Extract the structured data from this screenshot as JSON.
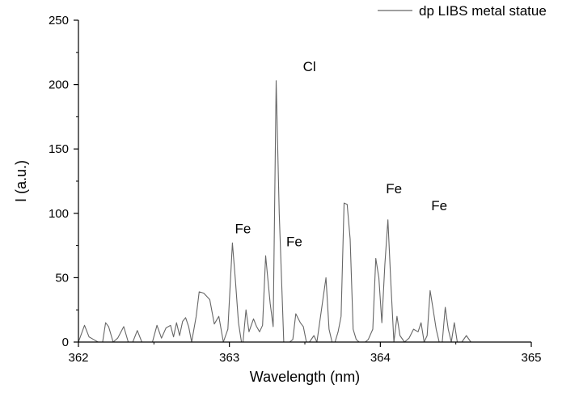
{
  "chart_data": {
    "type": "line",
    "xlabel": "Wavelength (nm)",
    "ylabel": "I (a.u.)",
    "xlim": [
      362,
      365
    ],
    "ylim": [
      0,
      250
    ],
    "xticks": [
      362,
      363,
      364,
      365
    ],
    "yticks": [
      0,
      50,
      100,
      150,
      200,
      250
    ],
    "legend_position": "top-right",
    "grid": false,
    "line_color": "#666666",
    "series": [
      {
        "name": "dp LIBS metal statue",
        "x": [
          362.0,
          362.04,
          362.07,
          362.1,
          362.13,
          362.16,
          362.18,
          362.2,
          362.23,
          362.26,
          362.3,
          362.33,
          362.36,
          362.39,
          362.42,
          362.45,
          362.49,
          362.52,
          362.55,
          362.58,
          362.61,
          362.63,
          362.65,
          362.67,
          362.69,
          362.71,
          362.73,
          362.75,
          362.78,
          362.8,
          362.83,
          362.87,
          362.9,
          362.93,
          362.96,
          362.99,
          363.02,
          363.04,
          363.06,
          363.08,
          363.09,
          363.11,
          363.13,
          363.16,
          363.18,
          363.2,
          363.22,
          363.24,
          363.27,
          363.29,
          363.31,
          363.33,
          363.36,
          363.38,
          363.4,
          363.42,
          363.44,
          363.47,
          363.49,
          363.51,
          363.53,
          363.56,
          363.58,
          363.61,
          363.64,
          363.66,
          363.68,
          363.7,
          363.72,
          363.74,
          363.76,
          363.78,
          363.8,
          363.82,
          363.84,
          363.86,
          363.88,
          363.9,
          363.92,
          363.95,
          363.97,
          363.99,
          364.01,
          364.03,
          364.05,
          364.07,
          364.09,
          364.11,
          364.13,
          364.16,
          364.19,
          364.22,
          364.25,
          364.27,
          364.29,
          364.31,
          364.33,
          364.35,
          364.37,
          364.39,
          364.41,
          364.43,
          364.45,
          364.47,
          364.49,
          364.51,
          364.54,
          364.57,
          364.6,
          364.63,
          364.66,
          364.69,
          364.72,
          364.74,
          364.76,
          364.78,
          364.8,
          364.82,
          364.84,
          364.86,
          364.88,
          364.9,
          364.92,
          364.94,
          364.96,
          364.98,
          365.0
        ],
        "y": [
          0,
          13,
          4,
          2,
          0,
          0,
          15,
          12,
          0,
          3,
          12,
          0,
          0,
          9,
          0,
          0,
          0,
          13,
          3,
          11,
          13,
          4,
          15,
          5,
          16,
          19,
          12,
          0,
          20,
          39,
          38,
          33,
          14,
          20,
          0,
          10,
          77,
          48,
          15,
          0,
          0,
          25,
          8,
          18,
          12,
          8,
          13,
          67,
          30,
          12,
          203,
          100,
          0,
          0,
          0,
          2,
          22,
          15,
          12,
          0,
          0,
          5,
          0,
          25,
          50,
          10,
          0,
          0,
          8,
          20,
          108,
          107,
          80,
          10,
          2,
          0,
          0,
          0,
          2,
          10,
          65,
          50,
          15,
          60,
          95,
          45,
          0,
          20,
          5,
          0,
          3,
          10,
          8,
          15,
          0,
          5,
          40,
          25,
          10,
          0,
          0,
          27,
          10,
          0,
          15,
          0,
          0,
          5,
          0,
          0,
          0,
          0,
          0,
          0,
          0,
          0,
          0,
          0,
          0,
          0,
          0,
          0,
          0,
          0,
          0,
          0,
          0
        ]
      }
    ],
    "annotations": [
      {
        "text": "Cl",
        "x": 363.53,
        "y": 203
      },
      {
        "text": "Fe",
        "x": 363.09,
        "y": 77
      },
      {
        "text": "Fe",
        "x": 363.43,
        "y": 67
      },
      {
        "text": "Fe",
        "x": 364.09,
        "y": 108
      },
      {
        "text": "Fe",
        "x": 364.39,
        "y": 95
      }
    ]
  }
}
